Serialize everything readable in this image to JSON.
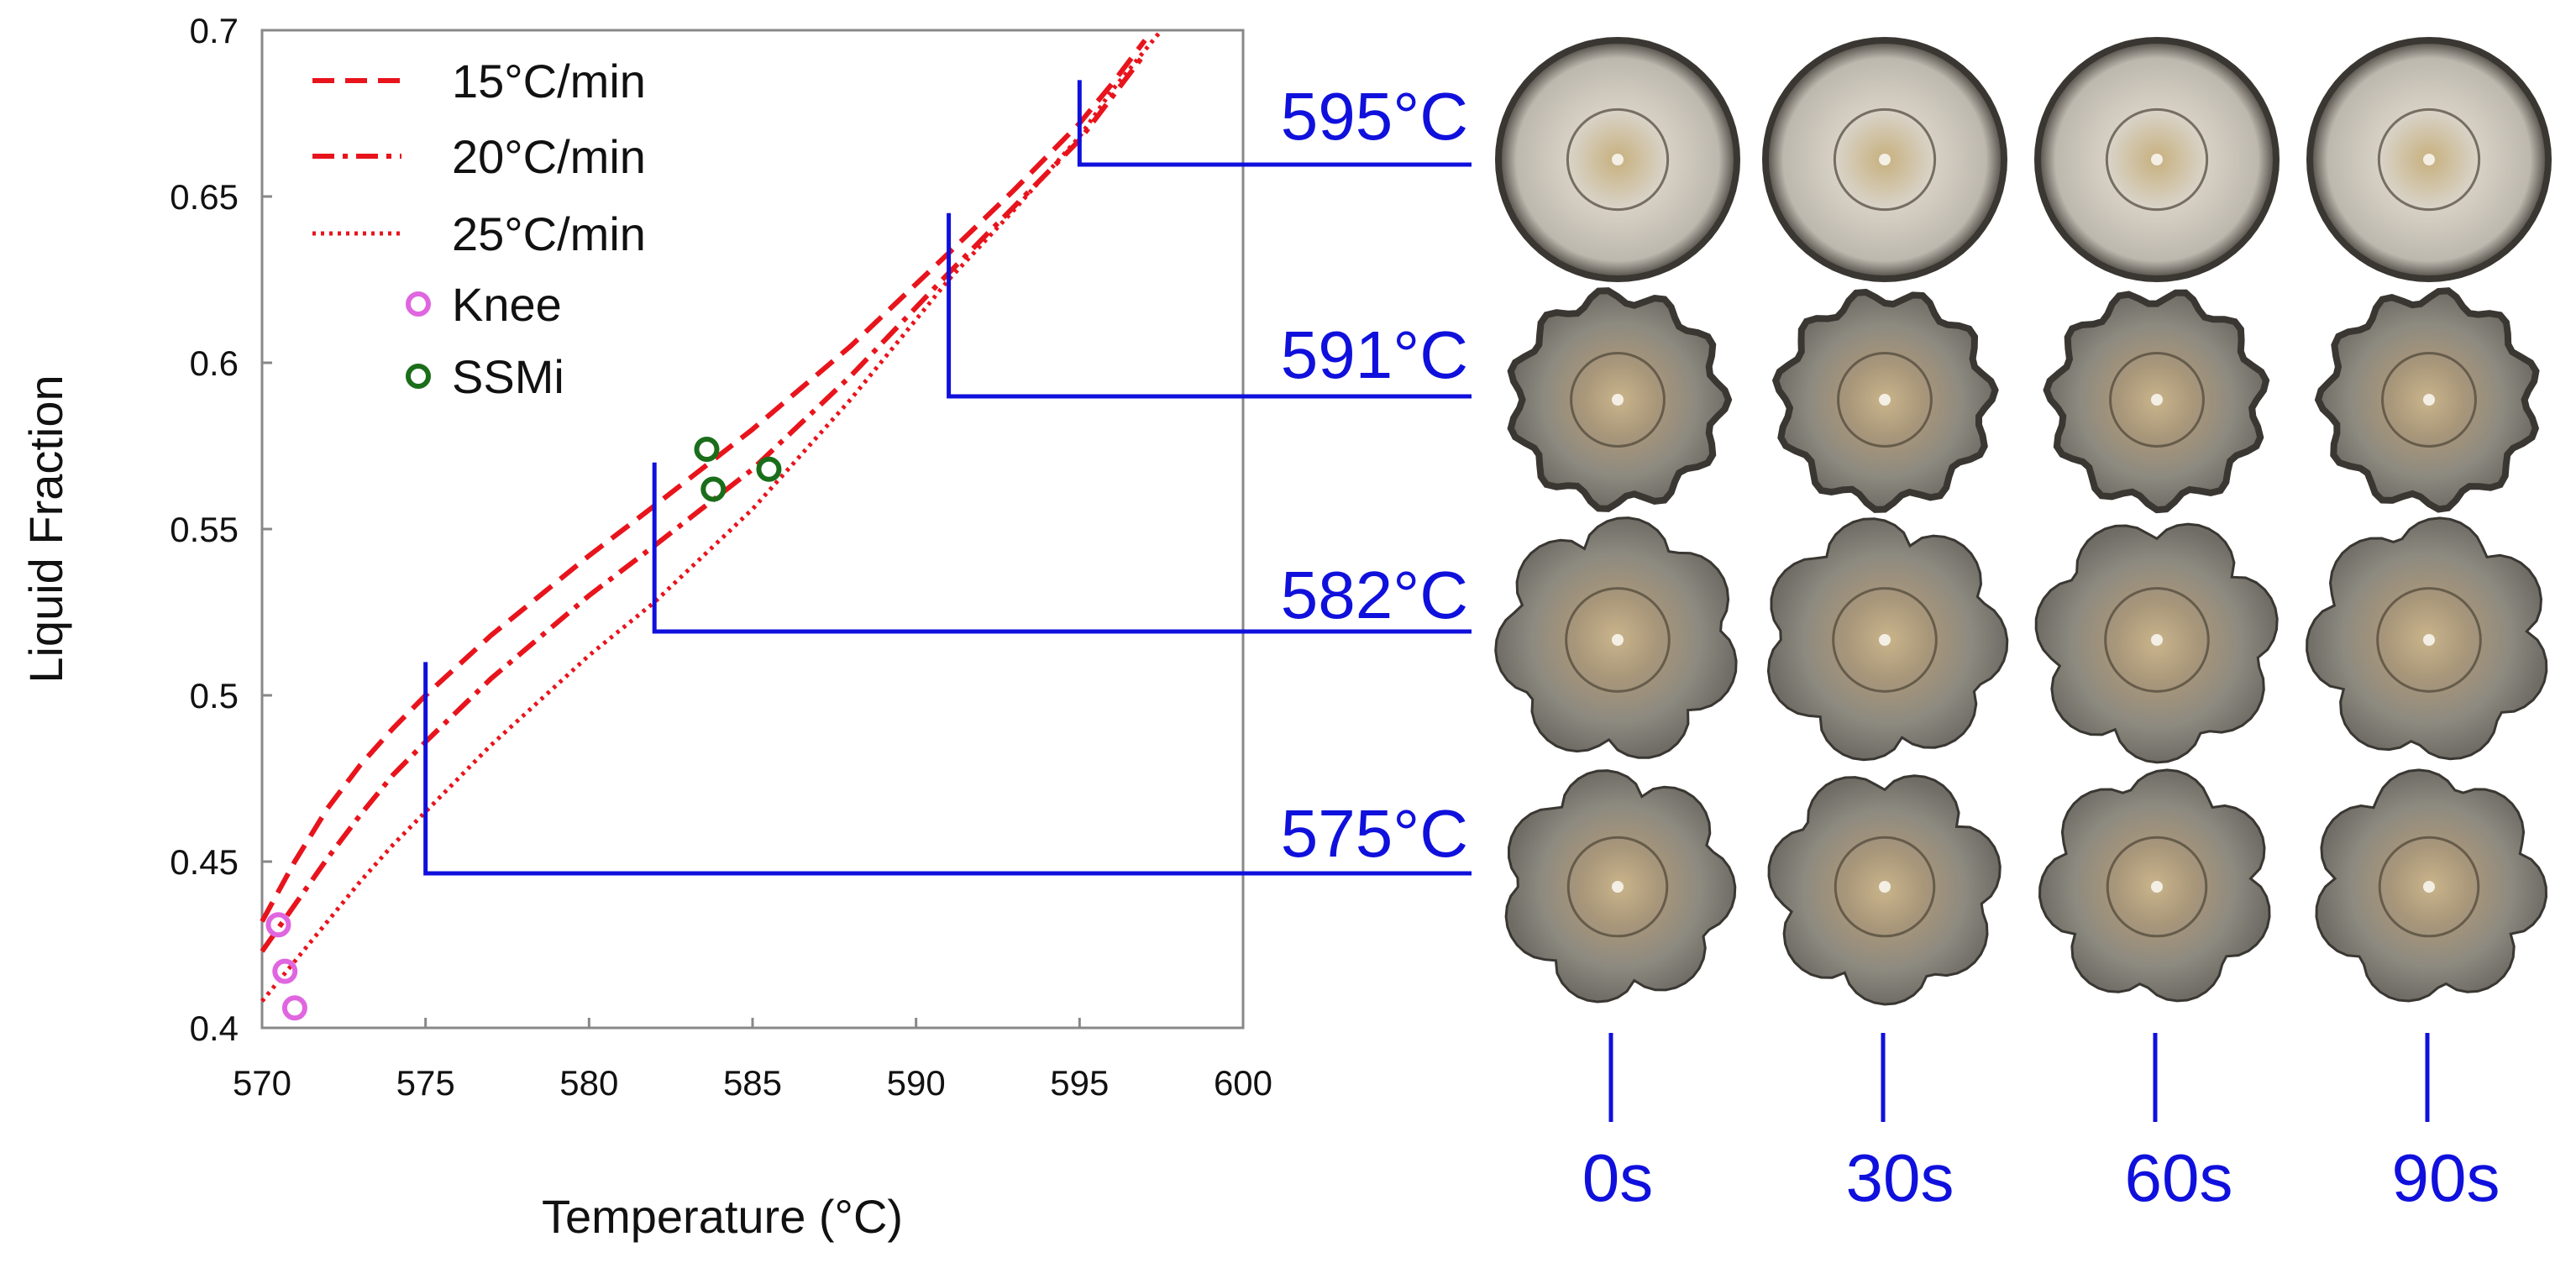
{
  "chart_data": {
    "type": "line",
    "xlabel": "Temperature (°C)",
    "ylabel": "Liquid Fraction",
    "xlim": [
      570,
      600
    ],
    "ylim": [
      0.4,
      0.7
    ],
    "xticks": [
      "570",
      "575",
      "580",
      "585",
      "590",
      "595",
      "600"
    ],
    "yticks": [
      "0.4",
      "0.45",
      "0.5",
      "0.55",
      "0.6",
      "0.65",
      "0.7"
    ],
    "grid": false,
    "legend_position": "top-left",
    "series": [
      {
        "name": "15°C/min",
        "style": "dashed",
        "color": "#e8141c",
        "x": [
          570.0,
          571.0,
          572.0,
          573.0,
          574.0,
          575.0,
          577.0,
          580.0,
          582.0,
          585.0,
          588.0,
          591.0,
          593.0,
          595.0,
          596.0,
          597.0
        ],
        "y": [
          0.432,
          0.45,
          0.466,
          0.479,
          0.49,
          0.5,
          0.518,
          0.542,
          0.557,
          0.58,
          0.605,
          0.633,
          0.652,
          0.672,
          0.684,
          0.697
        ]
      },
      {
        "name": "20°C/min",
        "style": "dashdot",
        "color": "#e8141c",
        "x": [
          570.0,
          571.0,
          572.0,
          573.0,
          574.0,
          575.0,
          577.0,
          580.0,
          582.0,
          585.0,
          588.0,
          591.0,
          593.0,
          595.0,
          596.0,
          597.0
        ],
        "y": [
          0.423,
          0.437,
          0.451,
          0.464,
          0.476,
          0.486,
          0.505,
          0.53,
          0.545,
          0.568,
          0.596,
          0.627,
          0.647,
          0.667,
          0.68,
          0.693
        ]
      },
      {
        "name": "25°C/min",
        "style": "dotted",
        "color": "#e8141c",
        "x": [
          570.0,
          571.0,
          572.0,
          573.0,
          574.0,
          575.0,
          577.0,
          580.0,
          582.0,
          585.0,
          588.0,
          591.0,
          593.0,
          595.0,
          596.0,
          597.5
        ],
        "y": [
          0.408,
          0.42,
          0.432,
          0.444,
          0.455,
          0.465,
          0.485,
          0.512,
          0.528,
          0.556,
          0.589,
          0.625,
          0.646,
          0.668,
          0.682,
          0.7
        ]
      },
      {
        "name": "Knee",
        "style": "marker",
        "color": "#e066e0",
        "x": [
          570.5,
          570.7,
          571.0
        ],
        "y": [
          0.431,
          0.417,
          0.406
        ]
      },
      {
        "name": "SSMi",
        "style": "marker",
        "color": "#1a6e1a",
        "x": [
          583.6,
          583.8,
          585.5
        ],
        "y": [
          0.574,
          0.562,
          0.568
        ]
      }
    ]
  },
  "annotations": {
    "temperatures": [
      {
        "label": "595°C",
        "temp": 595,
        "lf": 0.685
      },
      {
        "label": "591°C",
        "temp": 591,
        "lf": 0.645
      },
      {
        "label": "582°C",
        "temp": 582,
        "lf": 0.57
      },
      {
        "label": "575°C",
        "temp": 575,
        "lf": 0.51
      }
    ],
    "times": [
      "0s",
      "30s",
      "60s",
      "90s"
    ]
  },
  "colors": {
    "annotation": "#1010dd",
    "curve": "#e8141c",
    "axis": "#888888"
  }
}
